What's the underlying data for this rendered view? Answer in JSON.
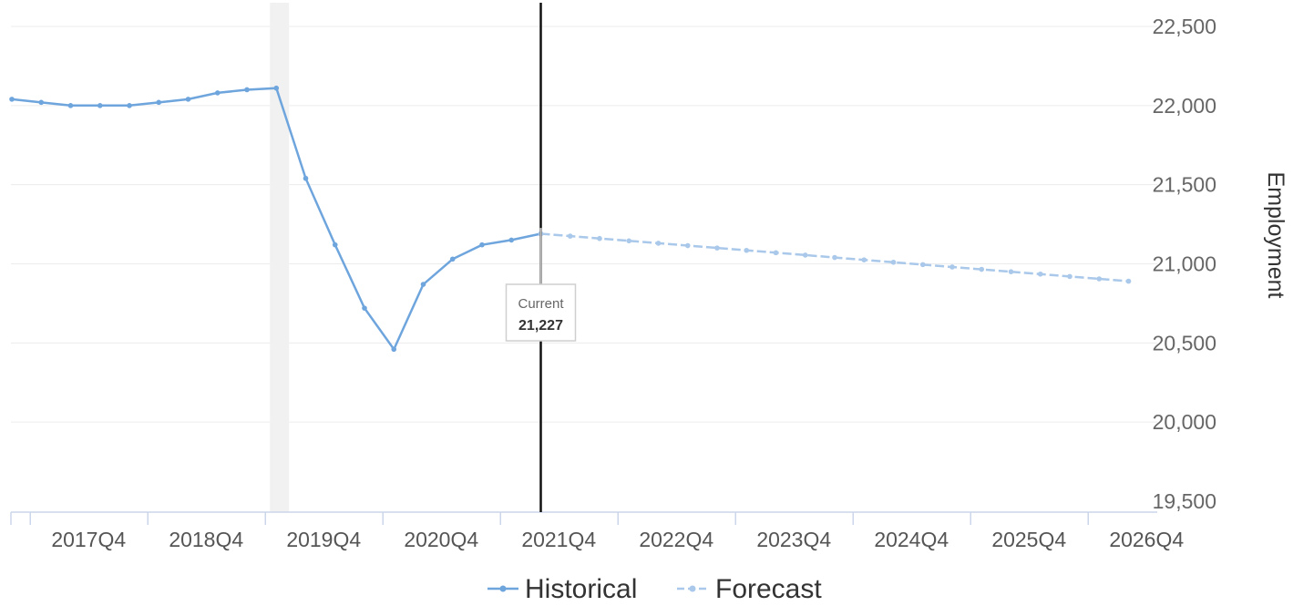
{
  "chart_data": {
    "type": "line",
    "title": "",
    "xlabel": "",
    "ylabel": "Employment",
    "ylim": [
      19500,
      22500
    ],
    "yticks": [
      "19,500",
      "20,000",
      "20,500",
      "21,000",
      "21,500",
      "22,000",
      "22,500"
    ],
    "xtick_labels": [
      "2017Q4",
      "2018Q4",
      "2019Q4",
      "2020Q4",
      "2021Q4",
      "2022Q4",
      "2023Q4",
      "2024Q4",
      "2025Q4",
      "2026Q4"
    ],
    "grid": "horizontal",
    "legend_position": "bottom-center",
    "shaded_period": "2019Q4 to 2020Q1",
    "current_marker": {
      "label": "Current",
      "value_text": "21,227",
      "value": 21227,
      "period": "2022Q1"
    },
    "series": [
      {
        "name": "Historical",
        "color": "#6fa5dd",
        "style": "solid",
        "x": [
          "2017Q3",
          "2017Q4",
          "2018Q1",
          "2018Q2",
          "2018Q3",
          "2018Q4",
          "2019Q1",
          "2019Q2",
          "2019Q3",
          "2019Q4",
          "2020Q1",
          "2020Q2",
          "2020Q3",
          "2020Q4",
          "2021Q1",
          "2021Q2",
          "2021Q3",
          "2021Q4",
          "2022Q1"
        ],
        "values": [
          22040,
          22020,
          22000,
          22000,
          22000,
          22020,
          22040,
          22080,
          22100,
          22110,
          21540,
          21120,
          20720,
          20460,
          20870,
          21030,
          21120,
          21150,
          21190
        ]
      },
      {
        "name": "Forecast",
        "color": "#a9c8ea",
        "style": "dashed",
        "x": [
          "2022Q1",
          "2022Q2",
          "2022Q3",
          "2022Q4",
          "2023Q1",
          "2023Q2",
          "2023Q3",
          "2023Q4",
          "2024Q1",
          "2024Q2",
          "2024Q3",
          "2024Q4",
          "2025Q1",
          "2025Q2",
          "2025Q3",
          "2025Q4",
          "2026Q1",
          "2026Q2",
          "2026Q3",
          "2026Q4",
          "2027Q1"
        ],
        "values": [
          21190,
          21175,
          21160,
          21145,
          21130,
          21115,
          21100,
          21085,
          21070,
          21055,
          21040,
          21025,
          21010,
          20995,
          20980,
          20965,
          20950,
          20935,
          20920,
          20905,
          20890
        ]
      }
    ]
  }
}
